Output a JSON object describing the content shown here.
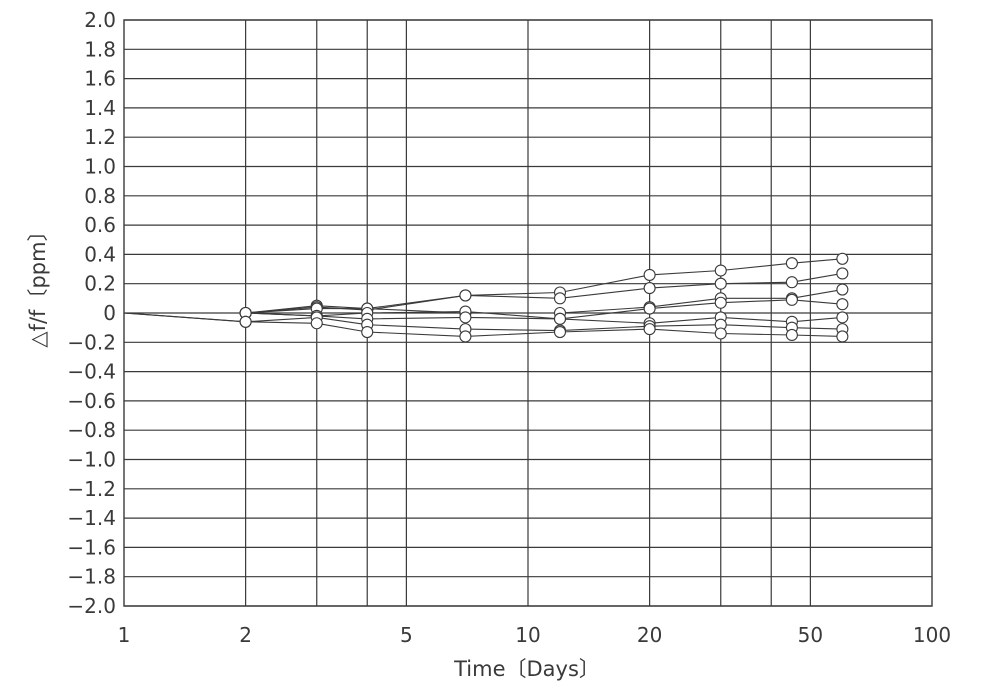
{
  "chart_data": {
    "type": "line",
    "title": "",
    "xlabel": "Time〔Days〕",
    "ylabel": "△f/f〔ppm〕",
    "x_scale": "log",
    "xlim": [
      1,
      100
    ],
    "ylim": [
      -2.0,
      2.0
    ],
    "grid": true,
    "legend": "none",
    "x_ticks": [
      1,
      2,
      5,
      10,
      20,
      50,
      100
    ],
    "x_tick_labels": [
      "1",
      "2",
      "5",
      "10",
      "20",
      "50",
      "100"
    ],
    "x_gridlines": [
      2,
      3,
      4,
      5,
      10,
      20,
      30,
      40,
      50
    ],
    "y_ticks": [
      2.0,
      1.8,
      1.6,
      1.4,
      1.2,
      1.0,
      0.8,
      0.6,
      0.4,
      0.2,
      0,
      -0.2,
      -0.4,
      -0.6,
      -0.8,
      -1.0,
      -1.2,
      -1.4,
      -1.6,
      -1.8,
      -2.0
    ],
    "y_tick_labels": [
      "2.0",
      "1.8",
      "1.6",
      "1.4",
      "1.2",
      "1.0",
      "0.8",
      "0.6",
      "0.4",
      "0.2",
      "0",
      "−0.2",
      "−0.4",
      "−0.6",
      "−0.8",
      "−1.0",
      "−1.2",
      "−1.4",
      "−1.6",
      "−1.8",
      "−2.0"
    ],
    "marker_style": "open circle",
    "series": [
      {
        "x": [
          1,
          2,
          3,
          4,
          7,
          12,
          20,
          30,
          45,
          60
        ],
        "y": [
          0,
          0,
          0.05,
          0.03,
          0.12,
          0.14,
          0.26,
          0.29,
          0.34,
          0.37
        ]
      },
      {
        "x": [
          1,
          2,
          3,
          4,
          7,
          12,
          20,
          30,
          45,
          60
        ],
        "y": [
          0,
          0,
          0.04,
          0.02,
          0.12,
          0.1,
          0.17,
          0.2,
          0.21,
          0.27
        ]
      },
      {
        "x": [
          1,
          2,
          3,
          4,
          7,
          12,
          20,
          30,
          45,
          60
        ],
        "y": [
          0,
          0,
          0.03,
          0.03,
          0.0,
          0.0,
          0.04,
          0.1,
          0.1,
          0.16
        ]
      },
      {
        "x": [
          1,
          2,
          3,
          4,
          7,
          12,
          20,
          30,
          45,
          60
        ],
        "y": [
          0,
          0,
          -0.02,
          0.0,
          0.01,
          -0.04,
          0.03,
          0.07,
          0.09,
          0.06
        ]
      },
      {
        "x": [
          1,
          2,
          3,
          4,
          7,
          12,
          20,
          30,
          45,
          60
        ],
        "y": [
          0,
          0,
          -0.02,
          -0.04,
          -0.03,
          -0.04,
          -0.07,
          -0.03,
          -0.06,
          -0.03
        ]
      },
      {
        "x": [
          1,
          2,
          3,
          4,
          7,
          12,
          20,
          30,
          45,
          60
        ],
        "y": [
          0,
          -0.06,
          -0.03,
          -0.08,
          -0.11,
          -0.12,
          -0.09,
          -0.08,
          -0.1,
          -0.11
        ]
      },
      {
        "x": [
          1,
          2,
          3,
          4,
          7,
          12,
          20,
          30,
          45,
          60
        ],
        "y": [
          0,
          -0.06,
          -0.07,
          -0.13,
          -0.16,
          -0.13,
          -0.11,
          -0.14,
          -0.15,
          -0.16
        ]
      }
    ]
  }
}
